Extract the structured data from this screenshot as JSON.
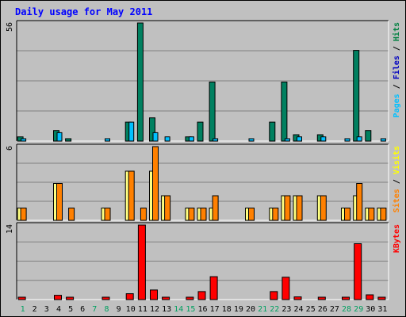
{
  "chart_data": {
    "type": "bar",
    "title": "Daily usage for May 2011",
    "days": [
      "1",
      "2",
      "3",
      "4",
      "5",
      "6",
      "7",
      "8",
      "9",
      "10",
      "11",
      "12",
      "13",
      "14",
      "15",
      "16",
      "17",
      "18",
      "19",
      "20",
      "21",
      "22",
      "23",
      "24",
      "25",
      "26",
      "27",
      "28",
      "29",
      "30",
      "31"
    ],
    "weekend_days": [
      "1",
      "7",
      "8",
      "14",
      "15",
      "21",
      "22",
      "28",
      "29"
    ],
    "panels": [
      {
        "id": "hits",
        "max_label": "56",
        "ylim": [
          0,
          56
        ],
        "axis_title": [
          "Pages",
          "/",
          "Files",
          "/",
          "Hits"
        ],
        "axis_title_colors": [
          "#00c0ff",
          "#000000",
          "#0000c0",
          "#000000",
          "#008040"
        ],
        "series": [
          {
            "name": "Hits",
            "color": "#008060",
            "values": [
              2,
              0,
              0,
              5,
              1,
              0,
              0,
              0,
              0,
              9,
              56,
              11,
              0,
              0,
              2,
              9,
              28,
              0,
              0,
              0,
              0,
              9,
              28,
              3,
              0,
              3,
              0,
              0,
              43,
              5,
              0
            ]
          },
          {
            "name": "Files",
            "color": "#00c0ff",
            "values": [
              1,
              0,
              0,
              4,
              0,
              0,
              0,
              1,
              0,
              9,
              0,
              4,
              2,
              0,
              2,
              0,
              1,
              0,
              0,
              1,
              0,
              0,
              1,
              2,
              0,
              2,
              0,
              1,
              2,
              0,
              1
            ]
          },
          {
            "name": "Pages",
            "color": "#00c0ff",
            "values": [
              0,
              0,
              0,
              0,
              0,
              0,
              0,
              0,
              0,
              0,
              0,
              0,
              0,
              0,
              0,
              0,
              0,
              0,
              0,
              0,
              0,
              0,
              0,
              0,
              0,
              0,
              0,
              0,
              0,
              0,
              0
            ]
          }
        ]
      },
      {
        "id": "visits",
        "max_label": "6",
        "ylim": [
          0,
          6
        ],
        "axis_title": [
          "Sites",
          "/",
          "Visits"
        ],
        "axis_title_colors": [
          "#ff8000",
          "#000000",
          "#ffff00"
        ],
        "series": [
          {
            "name": "Visits",
            "color": "#ffff80",
            "values": [
              1,
              0,
              0,
              3,
              0,
              0,
              0,
              1,
              0,
              4,
              0,
              4,
              2,
              0,
              1,
              1,
              1,
              0,
              0,
              1,
              0,
              1,
              2,
              2,
              0,
              2,
              0,
              1,
              2,
              1,
              1
            ]
          },
          {
            "name": "Sites",
            "color": "#ff8000",
            "values": [
              1,
              0,
              0,
              3,
              1,
              0,
              0,
              1,
              0,
              4,
              1,
              6,
              2,
              0,
              1,
              1,
              2,
              0,
              0,
              1,
              0,
              1,
              2,
              2,
              0,
              2,
              0,
              1,
              3,
              1,
              1
            ]
          }
        ]
      },
      {
        "id": "kbytes",
        "max_label": "14",
        "ylim": [
          0,
          14
        ],
        "axis_title": [
          "KBytes"
        ],
        "axis_title_colors": [
          "#ff0000"
        ],
        "series": [
          {
            "name": "KBytes",
            "color": "#ff0000",
            "values": [
              0.4,
              0,
              0,
              0.8,
              0.3,
              0,
              0,
              0.3,
              0,
              1.1,
              14,
              1.8,
              0.3,
              0,
              0.4,
              1.5,
              4.3,
              0,
              0,
              0,
              0,
              1.5,
              4.2,
              0.5,
              0,
              0.4,
              0,
              0.3,
              10.5,
              0.9,
              0.3
            ]
          }
        ]
      }
    ],
    "grid": true
  },
  "colors": {
    "background": "#c0c0c0",
    "title": "#0000ff",
    "weekend_label": "#00a060",
    "weekday_label": "#000000"
  }
}
